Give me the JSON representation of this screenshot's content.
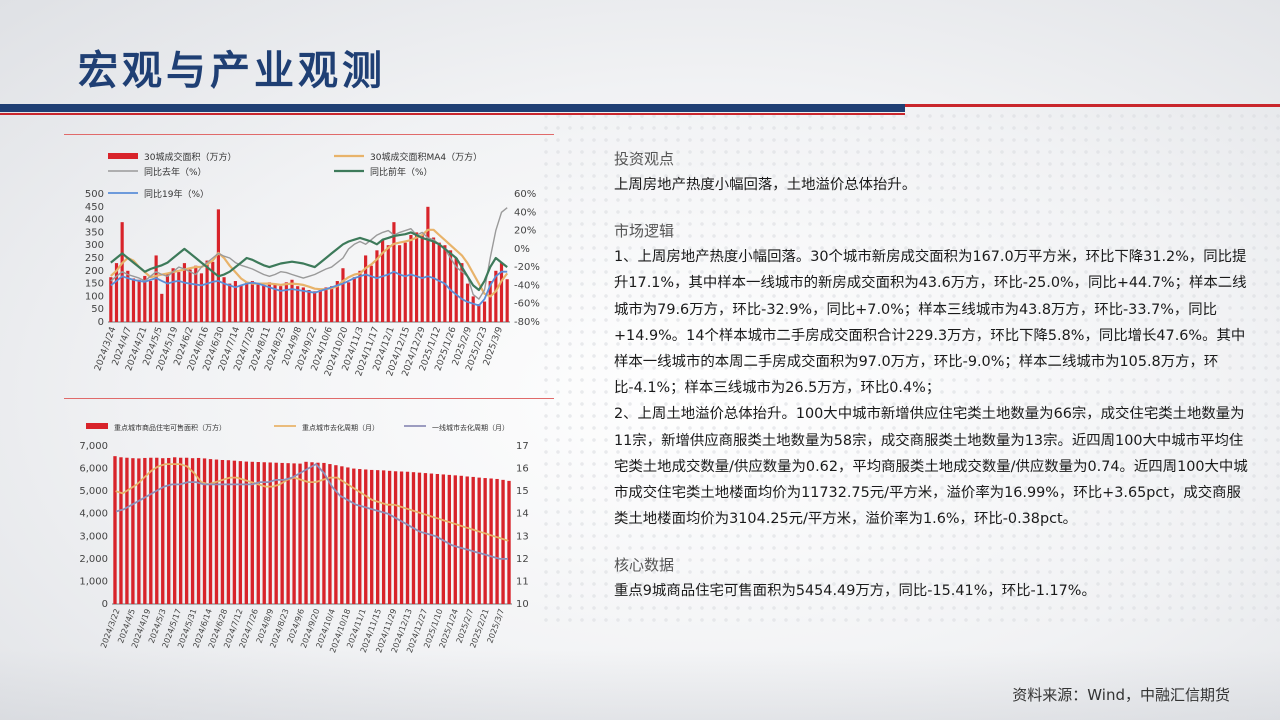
{
  "title": "宏观与产业观测",
  "sections": [
    {
      "heading": "投资观点",
      "text": "上周房地产热度小幅回落，土地溢价总体抬升。"
    },
    {
      "heading": "市场逻辑",
      "paras": [
        "1、上周房地产热度小幅回落。30个城市新房成交面积为167.0万平方米，环比下降31.2%，同比提升17.1%，其中样本一线城市的新房成交面积为43.6万方，环比-25.0%，同比+44.7%；样本二线城市为79.6万方，环比-32.9%，同比+7.0%；样本三线城市为43.8万方，环比-33.7%，同比+14.9%。14个样本城市二手房成交面积合计229.3万方，环比下降5.8%，同比增长47.6%。其中样本一线城市的本周二手房成交面积为97.0万方，环比-9.0%；样本二线城市为105.8万方，环比-4.1%；样本三线城市为26.5万方，环比0.4%；",
        "2、上周土地溢价总体抬升。100大中城市新增供应住宅类土地数量为66宗，成交住宅类土地数量为11宗，新增供应商服类土地数量为58宗，成交商服类土地数量为13宗。近四周100大中城市平均住宅类土地成交数量/供应数量为0.62，平均商服类土地成交数量/供应数量为0.74。近四周100大中城市成交住宅类土地楼面均价为11732.75元/平方米，溢价率为16.99%，环比+3.65pct，成交商服类土地楼面均价为3104.25元/平方米，溢价率为1.6%，环比-0.38pct。"
      ]
    },
    {
      "heading": "核心数据",
      "text": "重点9城商品住宅可售面积为5454.49万方，同比-15.41%，环比-1.17%。"
    }
  ],
  "source": "资料来源：Wind，中融汇信期货",
  "colors": {
    "navy": "#1f3f74",
    "red": "#c9262c",
    "bar": "#d8232a",
    "tan": "#e8b36a",
    "gray": "#9a9a9a",
    "green": "#3d7a5a",
    "blue": "#5b8ed8",
    "purple": "#8f8fb8"
  },
  "chart_data": [
    {
      "type": "bar",
      "legend": [
        "30城成交面积（万方）",
        "30城成交面积MA4（万方）",
        "同比去年（%）",
        "同比前年（%）",
        "同比19年（%）"
      ],
      "x_ticks": [
        "2024/3/24",
        "2024/4/7",
        "2024/4/21",
        "2024/5/5",
        "2024/5/19",
        "2024/6/2",
        "2024/6/16",
        "2024/6/30",
        "2024/7/14",
        "2024/7/28",
        "2024/8/11",
        "2024/8/25",
        "2024/9/8",
        "2024/9/22",
        "2024/10/6",
        "2024/10/20",
        "2024/11/3",
        "2024/11/17",
        "2024/12/1",
        "2024/12/15",
        "2024/12/29",
        "2025/1/12",
        "2025/1/26",
        "2025/2/9",
        "2025/2/23",
        "2025/3/9"
      ],
      "ylim_left": [
        0,
        500
      ],
      "y_ticks_left": [
        "0",
        "50",
        "100",
        "150",
        "200",
        "250",
        "300",
        "350",
        "400",
        "450",
        "500"
      ],
      "ylim_right": [
        -80,
        60
      ],
      "y_ticks_right": [
        "-80%",
        "-60%",
        "-40%",
        "-20%",
        "0%",
        "20%",
        "40%",
        "60%"
      ],
      "series": [
        {
          "name": "30城成交面积（万方）",
          "kind": "bar",
          "values": [
            175,
            230,
            390,
            200,
            170,
            165,
            180,
            160,
            260,
            110,
            190,
            210,
            195,
            230,
            205,
            220,
            190,
            240,
            235,
            440,
            175,
            150,
            160,
            145,
            155,
            160,
            150,
            145,
            155,
            150,
            140,
            155,
            165,
            140,
            135,
            125,
            120,
            130,
            135,
            140,
            160,
            210,
            155,
            175,
            200,
            260,
            220,
            280,
            320,
            300,
            390,
            300,
            310,
            340,
            350,
            340,
            450,
            330,
            310,
            300,
            280,
            250,
            230,
            150,
            100,
            70,
            80,
            160,
            200,
            230,
            167
          ]
        },
        {
          "name": "30城成交面积MA4（万方）",
          "kind": "line",
          "values": [
            180,
            200,
            230,
            250,
            240,
            215,
            195,
            175,
            180,
            185,
            190,
            195,
            200,
            205,
            210,
            215,
            215,
            225,
            240,
            270,
            250,
            220,
            195,
            170,
            155,
            150,
            150,
            150,
            150,
            148,
            145,
            148,
            150,
            148,
            145,
            138,
            130,
            128,
            128,
            132,
            140,
            160,
            175,
            185,
            190,
            210,
            225,
            245,
            270,
            290,
            305,
            310,
            315,
            320,
            330,
            340,
            360,
            360,
            340,
            320,
            300,
            280,
            260,
            230,
            190,
            150,
            110,
            100,
            120,
            160,
            190
          ]
        },
        {
          "name": "同比去年（%）",
          "kind": "line",
          "axis": "right",
          "values": [
            -35,
            -30,
            -25,
            -28,
            -30,
            -32,
            -35,
            -30,
            -25,
            -28,
            -30,
            -25,
            -20,
            -22,
            -25,
            -28,
            -20,
            -15,
            -10,
            -5,
            -8,
            -10,
            -15,
            -18,
            -20,
            -22,
            -25,
            -28,
            -30,
            -28,
            -25,
            -26,
            -28,
            -30,
            -32,
            -30,
            -28,
            -25,
            -22,
            -20,
            -15,
            -10,
            0,
            5,
            8,
            5,
            10,
            15,
            18,
            20,
            15,
            18,
            20,
            22,
            15,
            18,
            12,
            10,
            5,
            0,
            -10,
            -20,
            -25,
            -30,
            -50,
            -55,
            -45,
            -10,
            20,
            40,
            45
          ]
        },
        {
          "name": "同比前年（%）",
          "kind": "line",
          "axis": "right",
          "values": [
            -15,
            -10,
            -5,
            -10,
            -15,
            -20,
            -25,
            -22,
            -20,
            -18,
            -15,
            -10,
            -5,
            0,
            -5,
            -10,
            -15,
            -20,
            -25,
            -30,
            -28,
            -25,
            -20,
            -15,
            -10,
            -12,
            -15,
            -18,
            -20,
            -18,
            -16,
            -15,
            -14,
            -15,
            -16,
            -18,
            -20,
            -15,
            -10,
            -5,
            0,
            5,
            8,
            10,
            12,
            10,
            8,
            5,
            10,
            12,
            14,
            15,
            16,
            18,
            15,
            12,
            10,
            8,
            5,
            0,
            -5,
            -10,
            -20,
            -30,
            -40,
            -45,
            -35,
            -20,
            -10,
            -15,
            -20
          ]
        },
        {
          "name": "同比19年（%）",
          "kind": "line",
          "axis": "right",
          "values": [
            -40,
            -35,
            -30,
            -32,
            -34,
            -35,
            -36,
            -34,
            -32,
            -35,
            -38,
            -36,
            -35,
            -37,
            -38,
            -39,
            -40,
            -38,
            -36,
            -35,
            -38,
            -40,
            -42,
            -40,
            -38,
            -37,
            -38,
            -40,
            -42,
            -44,
            -46,
            -45,
            -44,
            -45,
            -46,
            -47,
            -48,
            -46,
            -44,
            -42,
            -40,
            -38,
            -35,
            -32,
            -30,
            -28,
            -30,
            -32,
            -30,
            -28,
            -25,
            -28,
            -30,
            -28,
            -30,
            -32,
            -30,
            -32,
            -35,
            -38,
            -45,
            -50,
            -55,
            -58,
            -60,
            -62,
            -55,
            -40,
            -30,
            -25,
            -25
          ]
        }
      ]
    },
    {
      "type": "bar",
      "legend": [
        "重点城市商品住宅可售面积（万方）",
        "重点城市去化周期（月）",
        "一线城市去化周期（月）"
      ],
      "x_ticks": [
        "2024/3/22",
        "2024/4/5",
        "2024/4/19",
        "2024/5/3",
        "2024/5/17",
        "2024/5/31",
        "2024/6/14",
        "2024/6/28",
        "2024/7/12",
        "2024/7/26",
        "2024/8/9",
        "2024/8/23",
        "2024/9/6",
        "2024/9/20",
        "2024/10/4",
        "2024/10/18",
        "2024/11/1",
        "2024/11/15",
        "2024/11/29",
        "2024/12/13",
        "2024/12/27",
        "2025/1/10",
        "2025/1/24",
        "2025/2/7",
        "2025/2/21",
        "2025/3/7"
      ],
      "ylim_left": [
        0,
        7000
      ],
      "y_ticks_left": [
        "0",
        "1,000",
        "2,000",
        "3,000",
        "4,000",
        "5,000",
        "6,000",
        "7,000"
      ],
      "ylim_right": [
        10,
        17
      ],
      "y_ticks_right": [
        "10",
        "11",
        "12",
        "13",
        "14",
        "15",
        "16",
        "17"
      ],
      "series": [
        {
          "name": "重点城市商品住宅可售面积（万方）",
          "kind": "bar",
          "values": [
            6550,
            6500,
            6480,
            6460,
            6450,
            6470,
            6480,
            6480,
            6460,
            6470,
            6500,
            6480,
            6480,
            6460,
            6470,
            6450,
            6420,
            6400,
            6380,
            6370,
            6350,
            6330,
            6310,
            6300,
            6290,
            6280,
            6270,
            6260,
            6250,
            6240,
            6230,
            6220,
            6300,
            6280,
            6260,
            6250,
            6200,
            6150,
            6100,
            6050,
            6000,
            5980,
            5960,
            5940,
            5930,
            5920,
            5900,
            5880,
            5870,
            5860,
            5840,
            5820,
            5800,
            5780,
            5760,
            5740,
            5720,
            5700,
            5680,
            5650,
            5630,
            5600,
            5580,
            5560,
            5540,
            5500,
            5454.49
          ]
        },
        {
          "name": "重点城市去化周期（月）",
          "kind": "line",
          "axis": "right",
          "values": [
            15.0,
            14.9,
            15.1,
            15.3,
            15.6,
            15.9,
            16.1,
            16.2,
            16.2,
            16.2,
            16.1,
            15.8,
            15.4,
            15.3,
            15.4,
            15.5,
            15.6,
            15.6,
            15.5,
            15.4,
            15.3,
            15.2,
            15.2,
            15.3,
            15.5,
            15.6,
            15.5,
            15.4,
            15.4,
            15.5,
            15.6,
            15.6,
            15.4,
            15.2,
            15.0,
            14.8,
            14.6,
            14.5,
            14.4,
            14.4,
            14.3,
            14.2,
            14.1,
            14.0,
            13.9,
            13.8,
            13.7,
            13.6,
            13.5,
            13.4,
            13.3,
            13.2,
            13.1,
            13.0,
            12.9,
            12.8
          ]
        },
        {
          "name": "一线城市去化周期（月）",
          "kind": "line",
          "axis": "right",
          "values": [
            14.1,
            14.2,
            14.4,
            14.6,
            14.8,
            15.0,
            15.2,
            15.3,
            15.3,
            15.4,
            15.4,
            15.3,
            15.3,
            15.3,
            15.3,
            15.3,
            15.3,
            15.3,
            15.4,
            15.4,
            15.5,
            15.5,
            15.6,
            15.8,
            16.0,
            16.2,
            15.8,
            15.2,
            14.8,
            14.6,
            14.4,
            14.3,
            14.2,
            14.1,
            14.0,
            13.8,
            13.6,
            13.4,
            13.2,
            13.1,
            13.0,
            12.8,
            12.6,
            12.5,
            12.4,
            12.3,
            12.2,
            12.1,
            12.0,
            12.0
          ]
        }
      ]
    }
  ]
}
